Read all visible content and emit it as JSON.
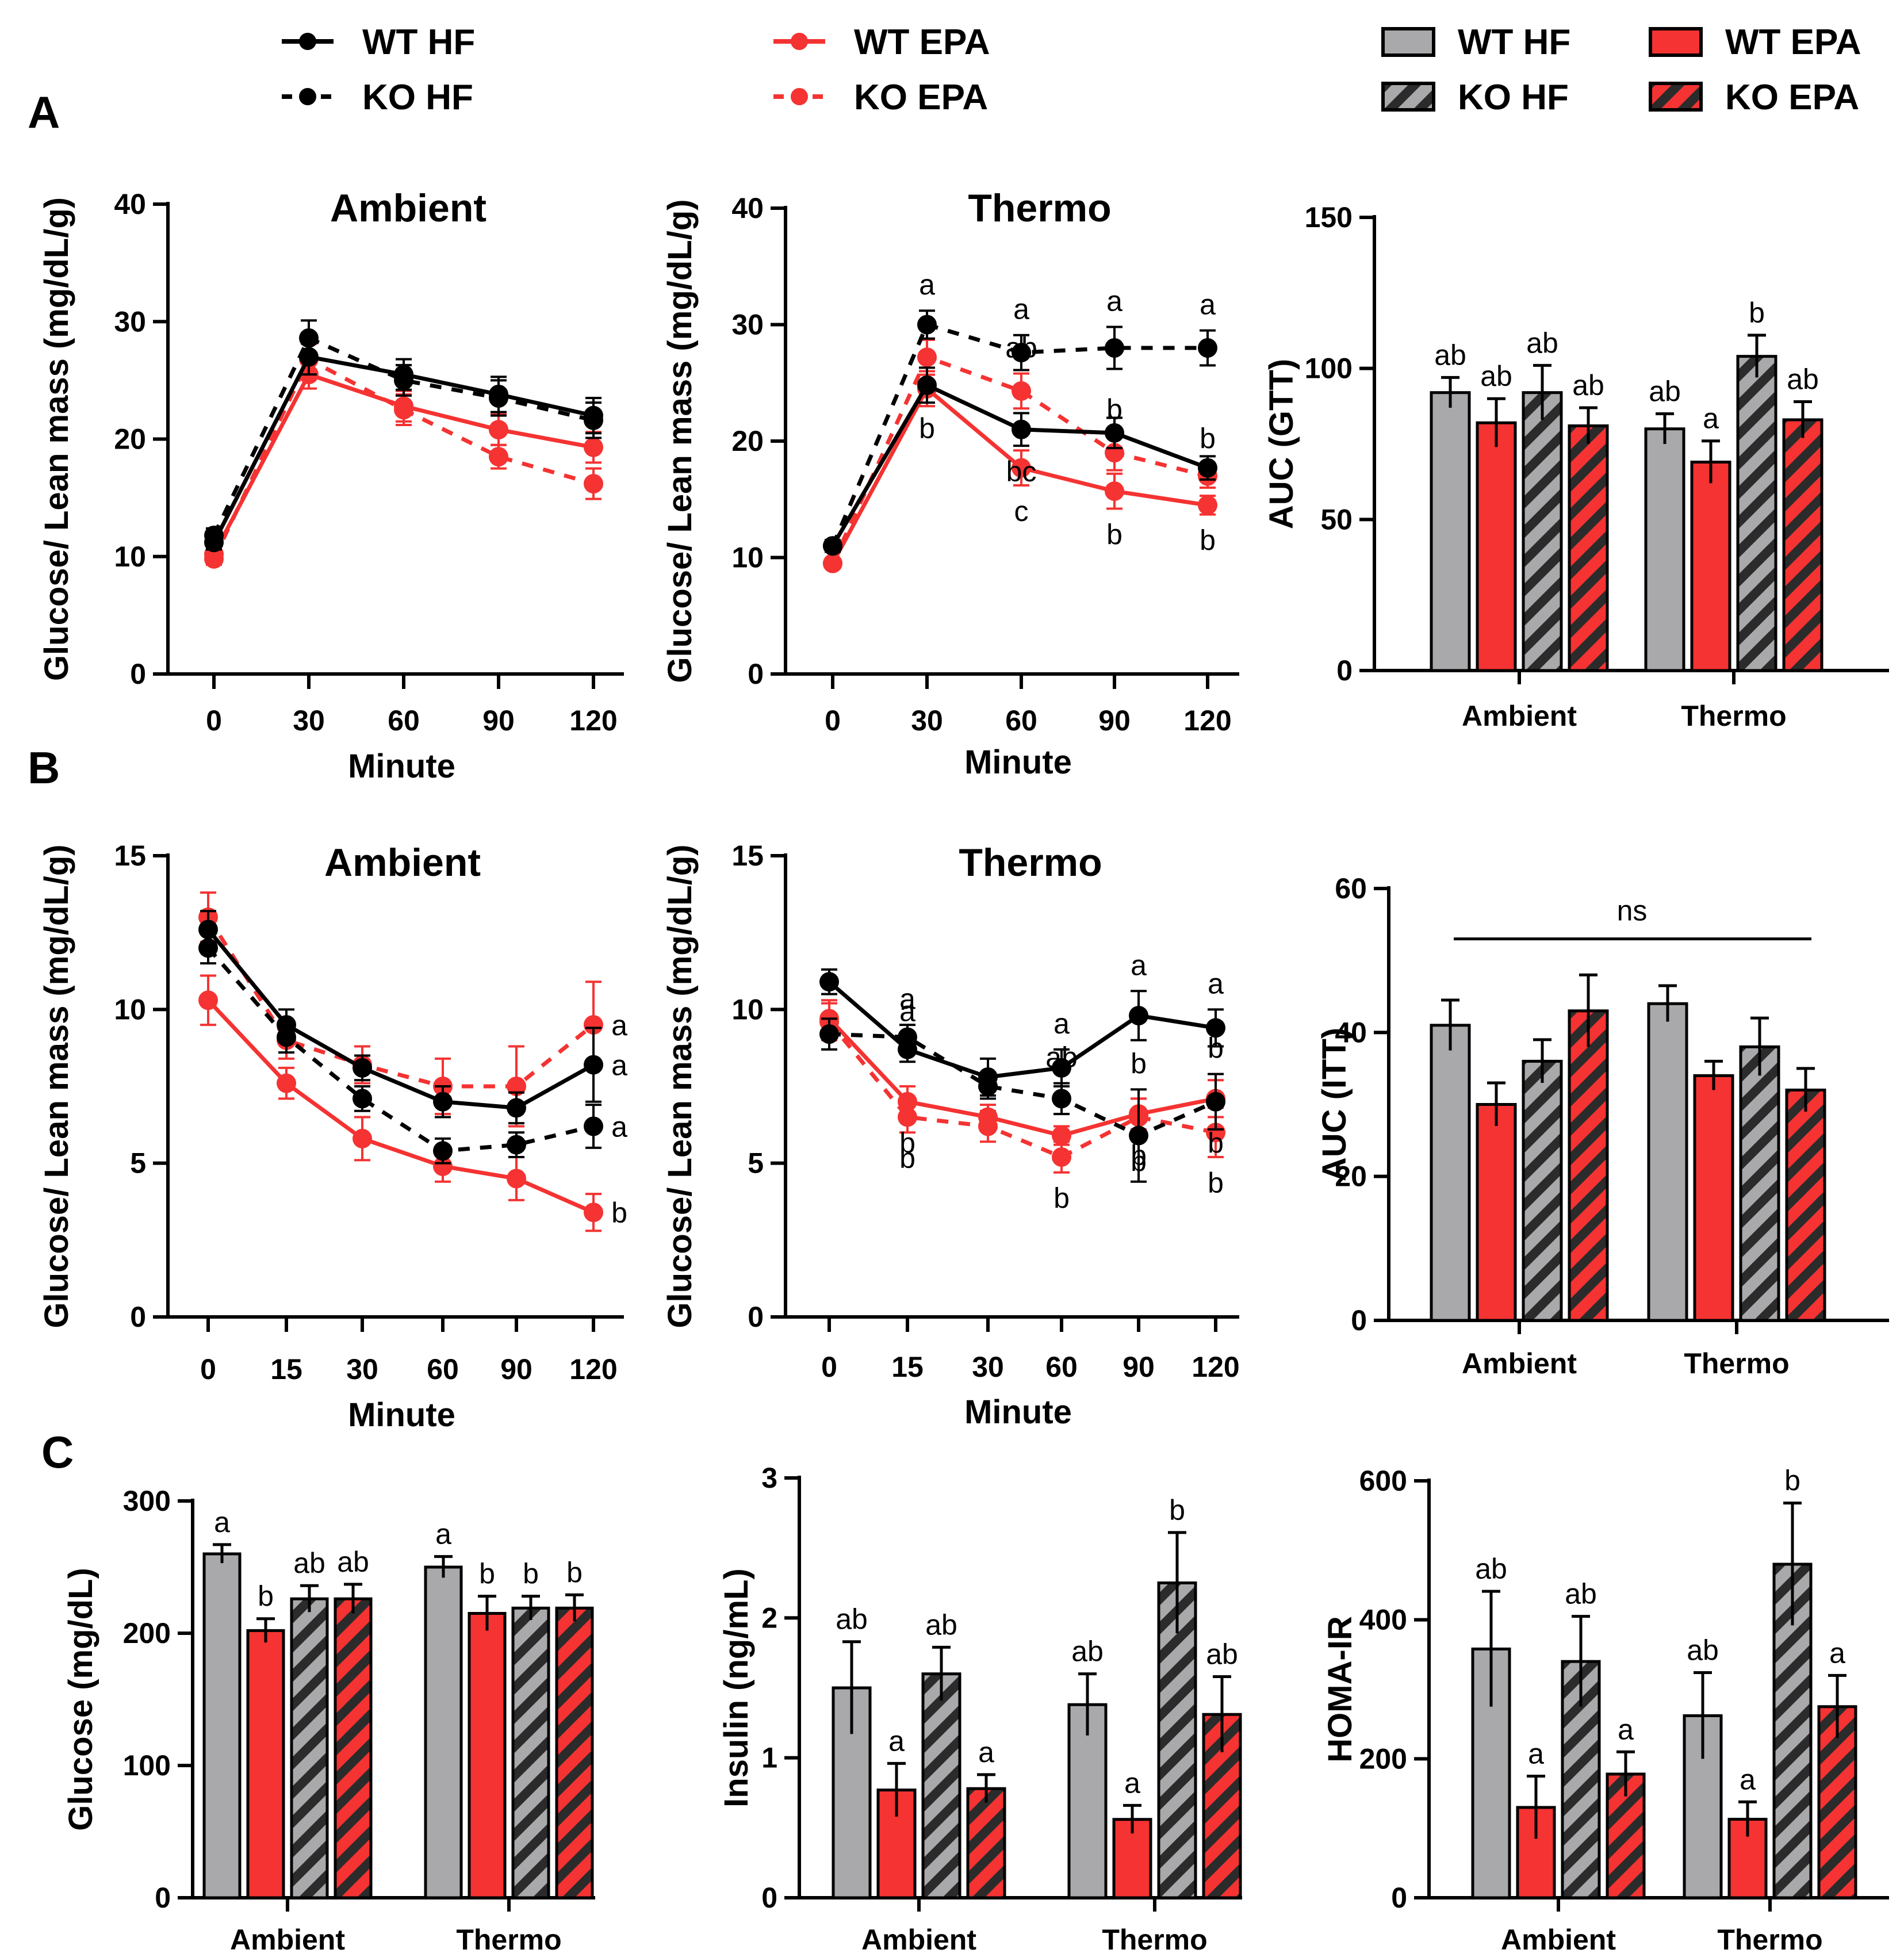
{
  "figure": {
    "panel_labels": [
      "A",
      "B",
      "C"
    ],
    "colors": {
      "wt_hf": "#000000",
      "epa": "#F43332",
      "gray_bar": "#A9A9AC",
      "hatch_dark": "#2b2b2b"
    },
    "line_legend": [
      {
        "label": "WT HF",
        "color": "#000000",
        "dashed": false
      },
      {
        "label": "KO HF",
        "color": "#000000",
        "dashed": true
      },
      {
        "label": "WT EPA",
        "color": "#F43332",
        "dashed": false
      },
      {
        "label": "KO EPA",
        "color": "#F43332",
        "dashed": true
      }
    ],
    "bar_legend": [
      {
        "label": "WT HF",
        "fill": "gray"
      },
      {
        "label": "KO HF",
        "fill": "gray-hatched"
      },
      {
        "label": "WT EPA",
        "fill": "red"
      },
      {
        "label": "KO EPA",
        "fill": "red-hatched"
      }
    ]
  },
  "chart_data": [
    {
      "id": "A_ambient",
      "type": "line",
      "title": "Ambient",
      "xlabel": "Minute",
      "ylabel": "Glucose/ Lean mass (mg/dL/g)",
      "x": [
        0,
        30,
        60,
        90,
        120
      ],
      "ylim": [
        0,
        40
      ],
      "yticks": [
        0,
        10,
        20,
        30,
        40
      ],
      "series": [
        {
          "name": "WT HF",
          "values": [
            11.2,
            27.0,
            25.5,
            23.8,
            22.0
          ],
          "err": [
            0.6,
            1.5,
            1.3,
            1.5,
            1.5
          ],
          "letters": []
        },
        {
          "name": "KO HF",
          "values": [
            11.8,
            28.6,
            25.0,
            23.5,
            21.6
          ],
          "err": [
            0.6,
            1.5,
            1.3,
            1.5,
            1.5
          ],
          "letters": []
        },
        {
          "name": "WT EPA",
          "values": [
            10.2,
            25.5,
            22.8,
            20.8,
            19.3
          ],
          "err": [
            0.5,
            1.2,
            1.3,
            1.3,
            1.3
          ],
          "letters": []
        },
        {
          "name": "KO EPA",
          "values": [
            9.8,
            26.8,
            22.5,
            18.5,
            16.2
          ],
          "err": [
            0.5,
            1.3,
            1.3,
            1.0,
            1.3
          ],
          "letters": []
        }
      ]
    },
    {
      "id": "A_thermo",
      "type": "line",
      "title": "Thermo",
      "xlabel": "Minute",
      "ylabel": "Glucose/ Lean mass (mg/dL/g)",
      "x": [
        0,
        30,
        60,
        90,
        120
      ],
      "ylim": [
        0,
        40
      ],
      "yticks": [
        0,
        10,
        20,
        30,
        40
      ],
      "series": [
        {
          "name": "WT HF",
          "values": [
            11.0,
            24.8,
            21.0,
            20.7,
            17.7
          ],
          "err": [
            0.5,
            1.5,
            1.4,
            1.3,
            1.0
          ],
          "letters": [
            "",
            "b",
            "bc",
            "",
            ""
          ]
        },
        {
          "name": "KO HF",
          "values": [
            11.0,
            30.0,
            27.6,
            28.0,
            28.0
          ],
          "err": [
            0.5,
            1.2,
            1.5,
            1.8,
            1.5
          ],
          "letters": [
            "",
            "a",
            "a",
            "a",
            "a"
          ]
        },
        {
          "name": "WT EPA",
          "values": [
            9.5,
            24.5,
            17.7,
            15.7,
            14.5
          ],
          "err": [
            0.4,
            1.5,
            1.5,
            1.5,
            0.8
          ],
          "letters": [
            "",
            "",
            "c",
            "b",
            "b"
          ]
        },
        {
          "name": "KO EPA",
          "values": [
            9.5,
            27.2,
            24.3,
            19.0,
            17.0
          ],
          "err": [
            0.4,
            1.5,
            1.5,
            1.5,
            1.0
          ],
          "letters": [
            "",
            "",
            "ab",
            "b",
            "b"
          ]
        }
      ]
    },
    {
      "id": "A_auc",
      "type": "bar",
      "ylabel": "AUC (GTT)",
      "categories": [
        "Ambient",
        "Thermo"
      ],
      "ylim": [
        0,
        150
      ],
      "yticks": [
        0,
        50,
        100,
        150
      ],
      "series": [
        {
          "name": "WT HF",
          "values": [
            92,
            80
          ],
          "err": [
            5,
            5
          ],
          "letters": [
            "ab",
            "ab"
          ]
        },
        {
          "name": "WT EPA",
          "values": [
            82,
            69
          ],
          "err": [
            8,
            7
          ],
          "letters": [
            "ab",
            "a"
          ]
        },
        {
          "name": "KO HF",
          "values": [
            92,
            104
          ],
          "err": [
            9,
            7
          ],
          "letters": [
            "ab",
            "b"
          ]
        },
        {
          "name": "KO EPA",
          "values": [
            81,
            83
          ],
          "err": [
            6,
            6
          ],
          "letters": [
            "ab",
            "ab"
          ]
        }
      ]
    },
    {
      "id": "B_ambient",
      "type": "line",
      "title": "Ambient",
      "xlabel": "Minute",
      "ylabel": "Glucose/ Lean mass (mg/dL/g)",
      "x": [
        0,
        15,
        30,
        60,
        90,
        120
      ],
      "ylim": [
        0,
        15
      ],
      "yticks": [
        0,
        5,
        10,
        15
      ],
      "series": [
        {
          "name": "WT HF",
          "values": [
            12.6,
            9.5,
            8.1,
            7.0,
            6.8,
            8.2
          ],
          "err": [
            0.6,
            0.5,
            0.4,
            0.5,
            0.5,
            1.2
          ],
          "letters": [
            "",
            "",
            "",
            "",
            "",
            "a"
          ]
        },
        {
          "name": "KO HF",
          "values": [
            12.0,
            9.1,
            7.1,
            5.4,
            5.6,
            6.2
          ],
          "err": [
            0.5,
            0.5,
            0.4,
            0.4,
            0.4,
            0.7
          ],
          "letters": [
            "",
            "",
            "",
            "",
            "",
            "a"
          ]
        },
        {
          "name": "WT EPA",
          "values": [
            10.3,
            7.6,
            5.8,
            4.9,
            4.5,
            3.4
          ],
          "err": [
            0.8,
            0.5,
            0.7,
            0.5,
            0.7,
            0.6
          ],
          "letters": [
            "",
            "",
            "",
            "",
            "",
            "b"
          ]
        },
        {
          "name": "KO EPA",
          "values": [
            13.0,
            9.0,
            8.2,
            7.5,
            7.5,
            9.5
          ],
          "err": [
            0.8,
            0.6,
            0.6,
            0.9,
            1.3,
            1.4
          ],
          "letters": [
            "",
            "",
            "",
            "",
            "",
            "a"
          ]
        }
      ]
    },
    {
      "id": "B_thermo",
      "type": "line",
      "title": "Thermo",
      "xlabel": "Minute",
      "ylabel": "Glucose/ Lean mass (mg/dL/g)",
      "x": [
        0,
        15,
        30,
        60,
        90,
        120
      ],
      "ylim": [
        0,
        15
      ],
      "yticks": [
        0,
        5,
        10,
        15
      ],
      "series": [
        {
          "name": "WT HF",
          "values": [
            10.9,
            8.7,
            7.8,
            8.1,
            9.8,
            9.4
          ],
          "err": [
            0.4,
            0.4,
            0.6,
            0.6,
            0.8,
            0.6
          ],
          "letters": [
            "",
            "a",
            "",
            "a",
            "a",
            "a"
          ]
        },
        {
          "name": "KO HF",
          "values": [
            9.2,
            9.1,
            7.5,
            7.1,
            5.9,
            7.0
          ],
          "err": [
            0.5,
            0.4,
            0.4,
            0.5,
            1.5,
            0.9
          ],
          "letters": [
            "",
            "a",
            "",
            "ab",
            "b",
            "b"
          ]
        },
        {
          "name": "WT EPA",
          "values": [
            9.7,
            7.0,
            6.5,
            5.9,
            6.6,
            7.1
          ],
          "err": [
            0.6,
            0.5,
            0.4,
            0.3,
            0.5,
            0.6
          ],
          "letters": [
            "",
            "b",
            "",
            "",
            "b",
            "b"
          ]
        },
        {
          "name": "KO EPA",
          "values": [
            9.6,
            6.5,
            6.2,
            5.2,
            6.5,
            6.0
          ],
          "err": [
            0.6,
            0.5,
            0.5,
            0.5,
            0.6,
            0.8
          ],
          "letters": [
            "",
            "b",
            "",
            "b",
            "b",
            "b"
          ]
        }
      ]
    },
    {
      "id": "B_auc",
      "type": "bar",
      "ylabel": "AUC (ITT)",
      "categories": [
        "Ambient",
        "Thermo"
      ],
      "ylim": [
        0,
        60
      ],
      "yticks": [
        0,
        20,
        40,
        60
      ],
      "annotation": "ns",
      "series": [
        {
          "name": "WT HF",
          "values": [
            41,
            44
          ],
          "err": [
            3.5,
            2.5
          ],
          "letters": [
            "",
            ""
          ]
        },
        {
          "name": "WT EPA",
          "values": [
            30,
            34
          ],
          "err": [
            3,
            2
          ],
          "letters": [
            "",
            ""
          ]
        },
        {
          "name": "KO HF",
          "values": [
            36,
            38
          ],
          "err": [
            3,
            4
          ],
          "letters": [
            "",
            ""
          ]
        },
        {
          "name": "KO EPA",
          "values": [
            43,
            32
          ],
          "err": [
            5,
            3
          ],
          "letters": [
            "",
            ""
          ]
        }
      ]
    },
    {
      "id": "C_glucose",
      "type": "bar",
      "ylabel": "Glucose (mg/dL)",
      "categories": [
        "Ambient",
        "Thermo"
      ],
      "ylim": [
        0,
        300
      ],
      "yticks": [
        0,
        100,
        200,
        300
      ],
      "series": [
        {
          "name": "WT HF",
          "values": [
            260,
            250
          ],
          "err": [
            7,
            8
          ],
          "letters": [
            "a",
            "a"
          ]
        },
        {
          "name": "WT EPA",
          "values": [
            202,
            215
          ],
          "err": [
            9,
            13
          ],
          "letters": [
            "b",
            "b"
          ]
        },
        {
          "name": "KO HF",
          "values": [
            226,
            219
          ],
          "err": [
            10,
            9
          ],
          "letters": [
            "ab",
            "b"
          ]
        },
        {
          "name": "KO EPA",
          "values": [
            226,
            219
          ],
          "err": [
            11,
            10
          ],
          "letters": [
            "ab",
            "b"
          ]
        }
      ]
    },
    {
      "id": "C_insulin",
      "type": "bar",
      "ylabel": "Insulin (ng/mL)",
      "categories": [
        "Ambient",
        "Thermo"
      ],
      "ylim": [
        0,
        3
      ],
      "yticks": [
        0,
        1,
        2,
        3
      ],
      "series": [
        {
          "name": "WT HF",
          "values": [
            1.5,
            1.38
          ],
          "err": [
            0.33,
            0.22
          ],
          "letters": [
            "ab",
            "ab"
          ]
        },
        {
          "name": "WT EPA",
          "values": [
            0.77,
            0.56
          ],
          "err": [
            0.19,
            0.1
          ],
          "letters": [
            "a",
            "a"
          ]
        },
        {
          "name": "KO HF",
          "values": [
            1.6,
            2.25
          ],
          "err": [
            0.19,
            0.36
          ],
          "letters": [
            "ab",
            "b"
          ]
        },
        {
          "name": "KO EPA",
          "values": [
            0.78,
            1.31
          ],
          "err": [
            0.1,
            0.27
          ],
          "letters": [
            "a",
            "ab"
          ]
        }
      ]
    },
    {
      "id": "C_homa",
      "type": "bar",
      "ylabel": "HOMA-IR",
      "categories": [
        "Ambient",
        "Thermo"
      ],
      "ylim": [
        0,
        600
      ],
      "yticks": [
        0,
        200,
        400,
        600
      ],
      "series": [
        {
          "name": "WT HF",
          "values": [
            358,
            262
          ],
          "err": [
            83,
            62
          ],
          "letters": [
            "ab",
            "ab"
          ]
        },
        {
          "name": "WT EPA",
          "values": [
            130,
            113
          ],
          "err": [
            45,
            25
          ],
          "letters": [
            "a",
            "a"
          ]
        },
        {
          "name": "KO HF",
          "values": [
            340,
            480
          ],
          "err": [
            65,
            88
          ],
          "letters": [
            "ab",
            "b"
          ]
        },
        {
          "name": "KO EPA",
          "values": [
            178,
            275
          ],
          "err": [
            32,
            45
          ],
          "letters": [
            "a",
            "a"
          ]
        }
      ]
    }
  ]
}
